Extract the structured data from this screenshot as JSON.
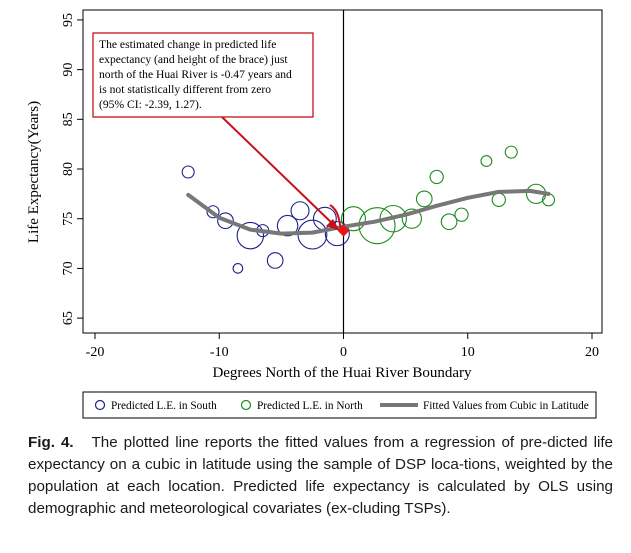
{
  "chart_data": {
    "type": "scatter",
    "title": "",
    "xlabel": "Degrees North of the Huai River Boundary",
    "ylabel": "Life Expectancy(Years)",
    "xlim": [
      -20,
      20
    ],
    "ylim": [
      63.5,
      96
    ],
    "xticks": [
      -20,
      -10,
      0,
      10,
      20
    ],
    "yticks": [
      65,
      70,
      75,
      80,
      85,
      90,
      95
    ],
    "xtick_labels": [
      "-20",
      "-10",
      "0",
      "10",
      "20"
    ],
    "ytick_labels": [
      "65",
      "70",
      "75",
      "80",
      "85",
      "90",
      "95"
    ],
    "boundary_x": 0,
    "series": [
      {
        "name": "Predicted L.E. in South",
        "color": "#1f1f8a",
        "marker": "circle",
        "points": [
          {
            "x": -12.5,
            "y": 79.7,
            "size": 1.0
          },
          {
            "x": -10.5,
            "y": 75.7,
            "size": 1.0
          },
          {
            "x": -9.5,
            "y": 74.8,
            "size": 1.3
          },
          {
            "x": -8.5,
            "y": 70.0,
            "size": 0.8
          },
          {
            "x": -7.5,
            "y": 73.3,
            "size": 2.2
          },
          {
            "x": -6.5,
            "y": 73.8,
            "size": 1.0
          },
          {
            "x": -5.5,
            "y": 70.8,
            "size": 1.3
          },
          {
            "x": -4.5,
            "y": 74.3,
            "size": 1.7
          },
          {
            "x": -3.5,
            "y": 75.8,
            "size": 1.5
          },
          {
            "x": -2.5,
            "y": 73.4,
            "size": 2.4
          },
          {
            "x": -1.5,
            "y": 75.0,
            "size": 1.9
          },
          {
            "x": -0.5,
            "y": 73.5,
            "size": 2.0
          }
        ]
      },
      {
        "name": "Predicted L.E. in North",
        "color": "#1f8a1f",
        "marker": "circle",
        "points": [
          {
            "x": 0.8,
            "y": 75.0,
            "size": 2.0
          },
          {
            "x": 2.7,
            "y": 74.3,
            "size": 3.0
          },
          {
            "x": 4.0,
            "y": 75.0,
            "size": 2.2
          },
          {
            "x": 5.5,
            "y": 75.0,
            "size": 1.6
          },
          {
            "x": 6.5,
            "y": 77.0,
            "size": 1.3
          },
          {
            "x": 7.5,
            "y": 79.2,
            "size": 1.1
          },
          {
            "x": 8.5,
            "y": 74.7,
            "size": 1.3
          },
          {
            "x": 9.5,
            "y": 75.4,
            "size": 1.1
          },
          {
            "x": 11.5,
            "y": 80.8,
            "size": 0.9
          },
          {
            "x": 12.5,
            "y": 76.9,
            "size": 1.1
          },
          {
            "x": 13.5,
            "y": 81.7,
            "size": 1.0
          },
          {
            "x": 15.5,
            "y": 77.5,
            "size": 1.6
          },
          {
            "x": 16.5,
            "y": 76.9,
            "size": 1.0
          }
        ]
      },
      {
        "name": "Fitted Values from Cubic in Latitude",
        "color": "#777777",
        "type": "line",
        "x": [
          -12.5,
          -10.0,
          -7.5,
          -5.0,
          -2.5,
          0.0
        ],
        "y": [
          77.4,
          75.1,
          73.9,
          73.5,
          73.6,
          74.2
        ],
        "x_north": [
          0.0,
          2.5,
          5.0,
          7.5,
          10.0,
          12.5,
          15.0,
          16.5
        ],
        "y_north": [
          74.2,
          74.7,
          75.4,
          76.3,
          77.1,
          77.7,
          77.8,
          77.5
        ]
      }
    ],
    "discontinuity_point": {
      "x": 0,
      "y": 73.8,
      "color": "#e8141a"
    },
    "annotation": {
      "lines": [
        "The estimated change in predicted life",
        "expectancy (and height of the brace) just",
        "north of the Huai River is -0.47 years and",
        "is not statistically different from zero",
        "(95% CI: -2.39, 1.27)."
      ],
      "color": "#c8101a"
    },
    "legend": {
      "placement": "bottom",
      "items": [
        {
          "label": "Predicted L.E. in South",
          "symbol": "circle",
          "color": "#1f1f8a"
        },
        {
          "label": "Predicted L.E. in North",
          "symbol": "circle",
          "color": "#1f8a1f"
        },
        {
          "label": "Fitted Values from Cubic in Latitude",
          "symbol": "line",
          "color": "#777777"
        }
      ]
    }
  },
  "caption": {
    "label": "Fig. 4.",
    "text": "The plotted line reports the fitted values from a regression of pre-dicted life expectancy on a cubic in latitude using the sample of DSP loca-tions, weighted by the population at each location. Predicted life expectancy is calculated by OLS using demographic and meteorological covariates (ex-cluding TSPs)."
  }
}
